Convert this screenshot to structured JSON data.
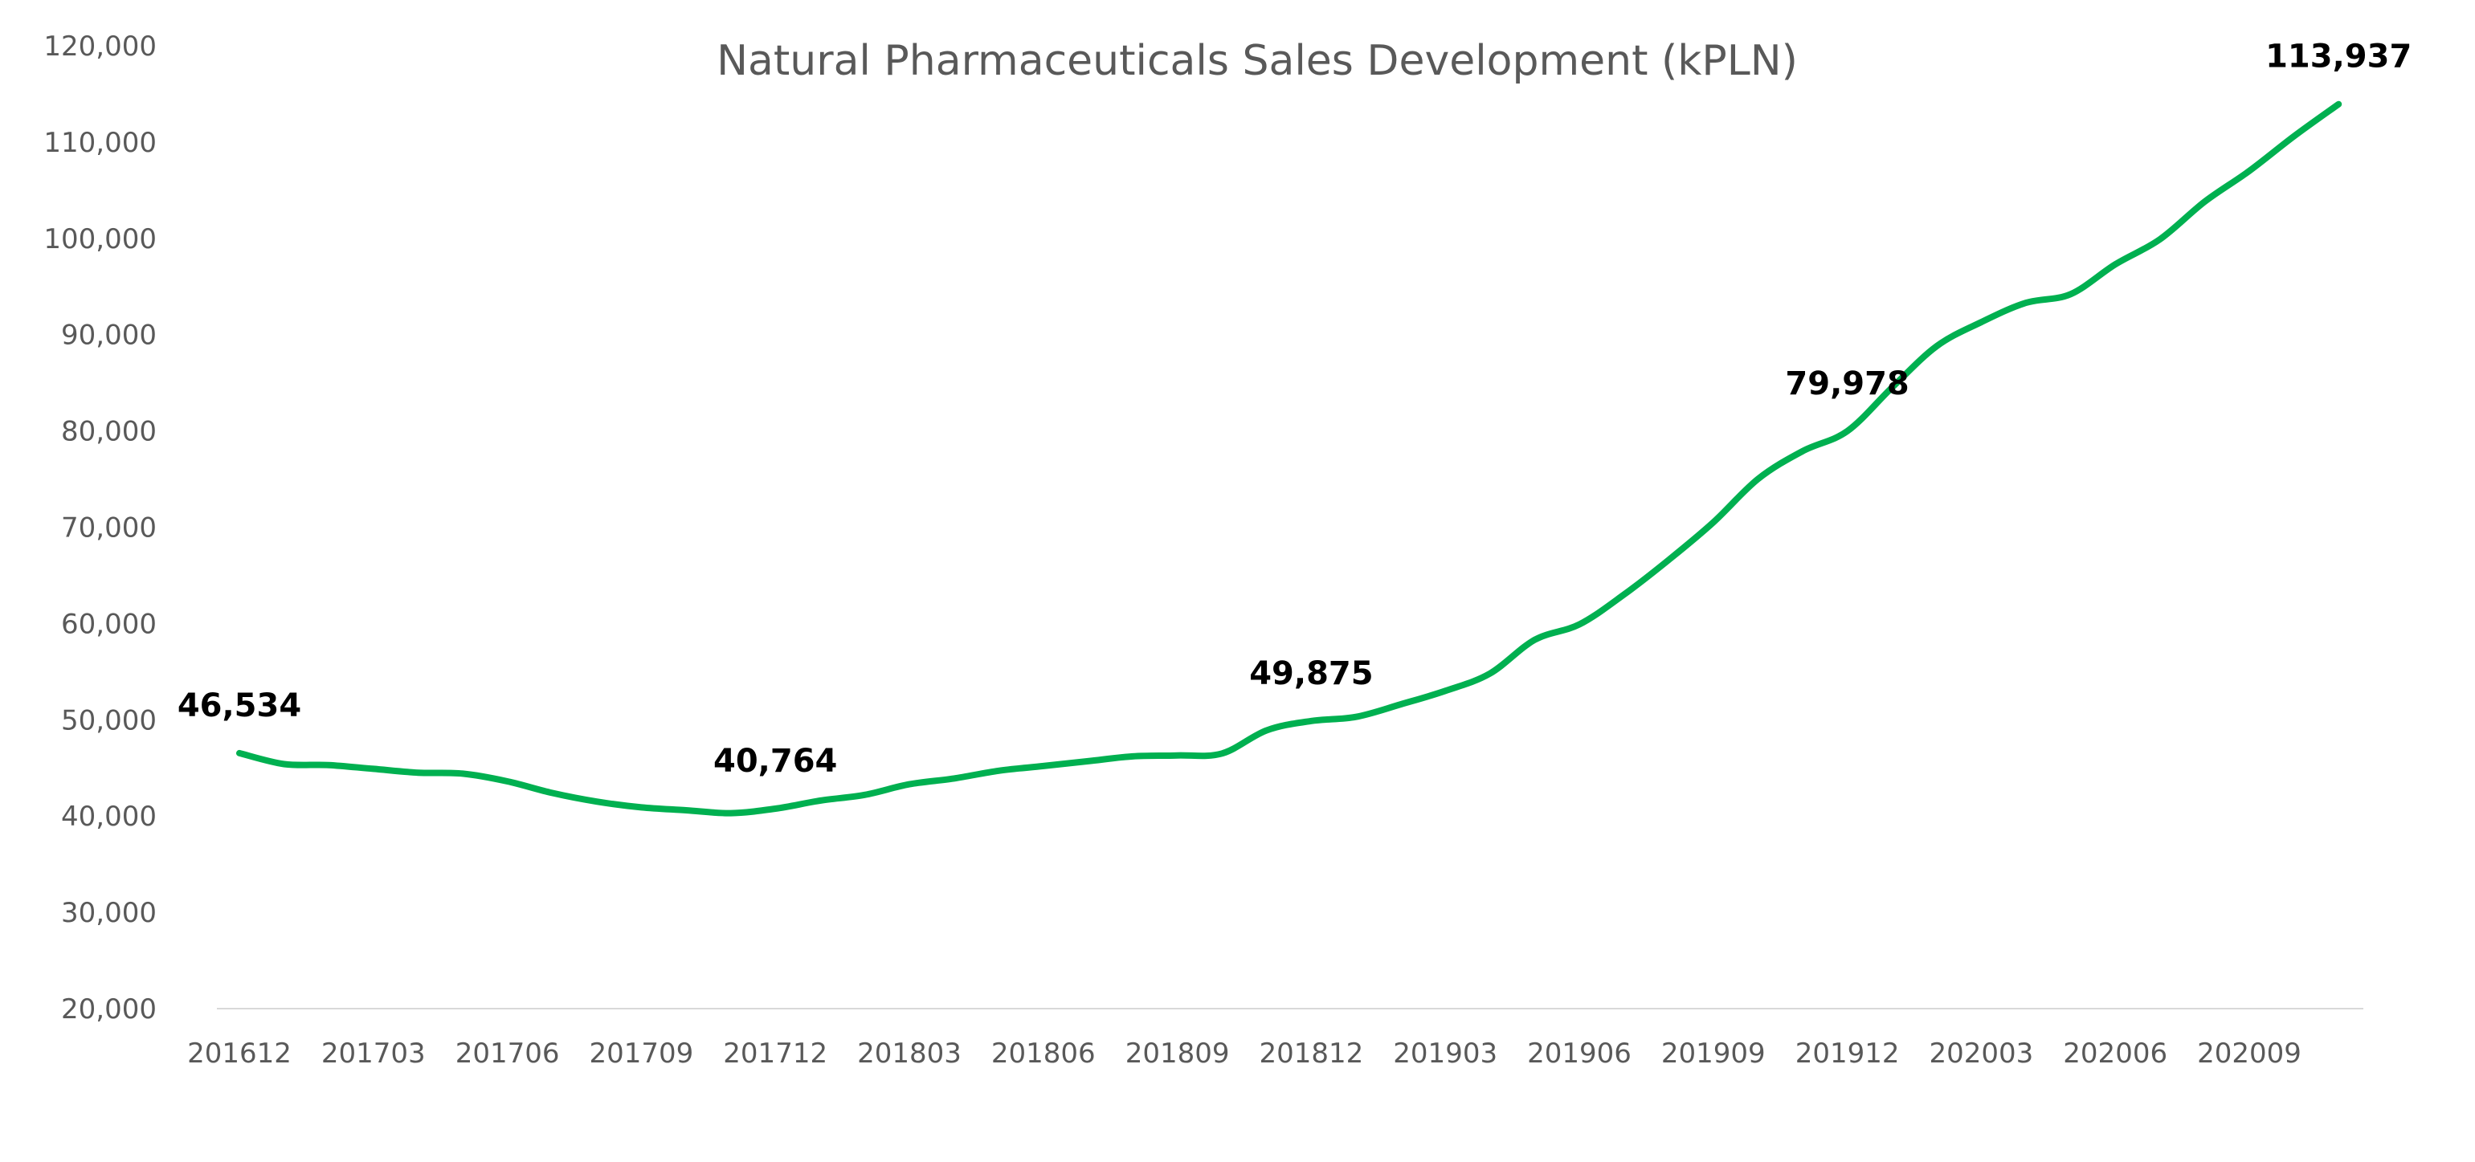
{
  "chart_data": {
    "type": "line",
    "title": "Natural Pharmaceuticals Sales Development (kPLN)",
    "xlabel": "",
    "ylabel": "",
    "ylim": [
      20000,
      120000
    ],
    "yticks": [
      20000,
      30000,
      40000,
      50000,
      60000,
      70000,
      80000,
      90000,
      100000,
      110000,
      120000
    ],
    "ytick_labels": [
      "20,000",
      "30,000",
      "40,000",
      "50,000",
      "60,000",
      "70,000",
      "80,000",
      "90,000",
      "100,000",
      "110,000",
      "120,000"
    ],
    "xtick_labels": [
      "201612",
      "201703",
      "201706",
      "201709",
      "201712",
      "201803",
      "201806",
      "201809",
      "201812",
      "201903",
      "201906",
      "201909",
      "201912",
      "202003",
      "202006",
      "202009"
    ],
    "grid": false,
    "legend": "none",
    "line_color": "#00B050",
    "categories": [
      "201612",
      "201701",
      "201702",
      "201703",
      "201704",
      "201705",
      "201706",
      "201707",
      "201708",
      "201709",
      "201710",
      "201711",
      "201712",
      "201801",
      "201802",
      "201803",
      "201804",
      "201805",
      "201806",
      "201807",
      "201808",
      "201809",
      "201810",
      "201811",
      "201812",
      "201901",
      "201902",
      "201903",
      "201904",
      "201905",
      "201906",
      "201907",
      "201908",
      "201909",
      "201910",
      "201911",
      "201912",
      "202001",
      "202002",
      "202003",
      "202004",
      "202005",
      "202006",
      "202007",
      "202008",
      "202009",
      "202010",
      "202011"
    ],
    "values": [
      46534,
      45400,
      45300,
      44900,
      44500,
      44400,
      43600,
      42400,
      41500,
      40900,
      40600,
      40300,
      40764,
      41600,
      42200,
      43300,
      43900,
      44700,
      45200,
      45700,
      46200,
      46300,
      46500,
      48900,
      49875,
      50300,
      51600,
      53000,
      54800,
      58300,
      59900,
      63000,
      66600,
      70500,
      75000,
      77900,
      79978,
      84500,
      88800,
      91300,
      93300,
      94200,
      97300,
      99900,
      103800,
      107000,
      110600,
      113937
    ],
    "data_labels": [
      {
        "category": "201612",
        "text": "46,534"
      },
      {
        "category": "201712",
        "text": "40,764"
      },
      {
        "category": "201812",
        "text": "49,875"
      },
      {
        "category": "201912",
        "text": "79,978"
      },
      {
        "category": "202011",
        "text": "113,937"
      }
    ]
  }
}
